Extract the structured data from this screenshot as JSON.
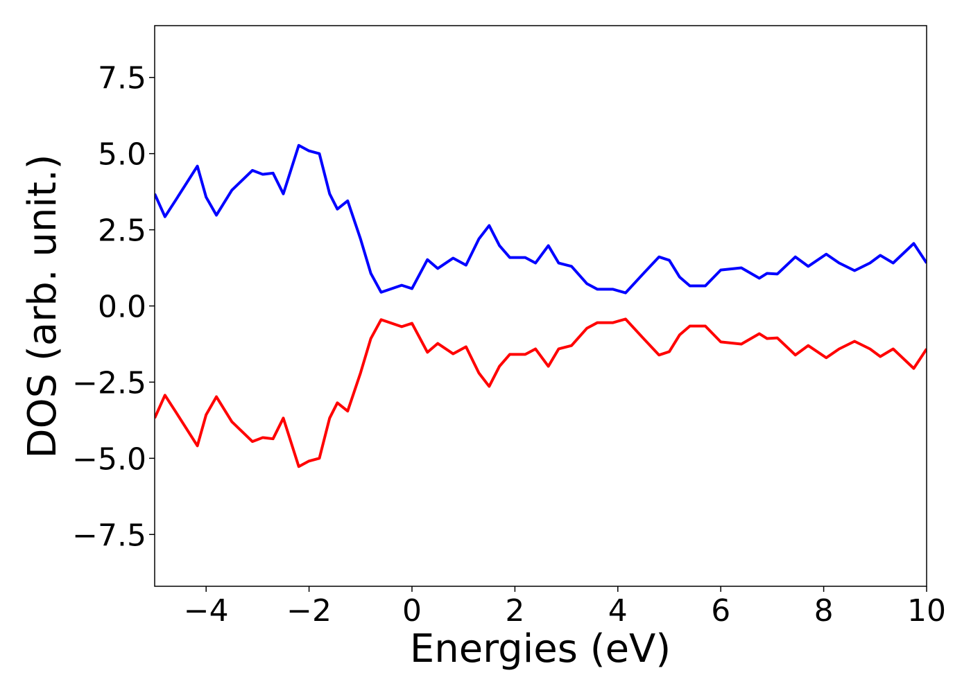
{
  "chart_data": {
    "type": "line",
    "x_label": "Energies (eV)",
    "y_label": "DOS (arb. unit.)",
    "x": [
      -5,
      -4.8,
      -4.6,
      -4.17,
      -4.0,
      -3.8,
      -3.5,
      -3.1,
      -2.9,
      -2.7,
      -2.5,
      -2.2,
      -2.0,
      -1.8,
      -1.6,
      -1.45,
      -1.25,
      -1.0,
      -0.8,
      -0.6,
      -0.2,
      0.0,
      0.3,
      0.5,
      0.8,
      1.05,
      1.3,
      1.5,
      1.7,
      1.9,
      2.2,
      2.4,
      2.65,
      2.85,
      3.1,
      3.4,
      3.6,
      3.9,
      4.15,
      4.5,
      4.8,
      5.0,
      5.2,
      5.4,
      5.7,
      6.0,
      6.4,
      6.75,
      6.9,
      7.1,
      7.45,
      7.7,
      8.05,
      8.3,
      8.6,
      8.9,
      9.1,
      9.35,
      9.75,
      10.0
    ],
    "series": [
      {
        "color": "#0000ff",
        "values": [
          3.68,
          2.93,
          3.45,
          4.59,
          3.57,
          2.98,
          3.8,
          4.45,
          4.32,
          4.36,
          3.68,
          5.27,
          5.09,
          5.0,
          3.68,
          3.18,
          3.45,
          2.2,
          1.07,
          0.45,
          0.68,
          0.57,
          1.52,
          1.23,
          1.57,
          1.34,
          2.2,
          2.64,
          1.98,
          1.59,
          1.59,
          1.41,
          1.98,
          1.41,
          1.3,
          0.73,
          0.55,
          0.55,
          0.43,
          1.07,
          1.61,
          1.5,
          0.95,
          0.66,
          0.66,
          1.18,
          1.25,
          0.91,
          1.07,
          1.05,
          1.61,
          1.3,
          1.7,
          1.41,
          1.16,
          1.41,
          1.66,
          1.41,
          2.05,
          1.41
        ]
      },
      {
        "color": "#ff0000",
        "values": [
          -3.68,
          -2.93,
          -3.45,
          -4.59,
          -3.57,
          -2.98,
          -3.8,
          -4.45,
          -4.32,
          -4.36,
          -3.68,
          -5.27,
          -5.09,
          -5.0,
          -3.68,
          -3.18,
          -3.45,
          -2.2,
          -1.07,
          -0.45,
          -0.68,
          -0.57,
          -1.52,
          -1.23,
          -1.57,
          -1.34,
          -2.2,
          -2.64,
          -1.98,
          -1.59,
          -1.59,
          -1.41,
          -1.98,
          -1.41,
          -1.3,
          -0.73,
          -0.55,
          -0.55,
          -0.43,
          -1.07,
          -1.61,
          -1.5,
          -0.95,
          -0.66,
          -0.66,
          -1.18,
          -1.25,
          -0.91,
          -1.07,
          -1.05,
          -1.61,
          -1.3,
          -1.7,
          -1.41,
          -1.16,
          -1.41,
          -1.66,
          -1.41,
          -2.05,
          -1.41
        ]
      }
    ],
    "xlim": [
      -5,
      10
    ],
    "ylim": [
      -9.2,
      9.2
    ],
    "xticks": [
      {
        "value": -4,
        "label": "−4"
      },
      {
        "value": -2,
        "label": "−2"
      },
      0,
      2,
      4,
      6,
      8,
      10
    ],
    "yticks": [
      {
        "value": -7.5,
        "label": "−7.5"
      },
      {
        "value": -5,
        "label": "−5.0"
      },
      {
        "value": -2.5,
        "label": "−2.5"
      },
      {
        "value": 0,
        "label": "0.0"
      },
      {
        "value": 2.5,
        "label": "2.5"
      },
      {
        "value": 5,
        "label": "5.0"
      },
      {
        "value": 7.5,
        "label": "7.5"
      }
    ],
    "grid": false
  }
}
